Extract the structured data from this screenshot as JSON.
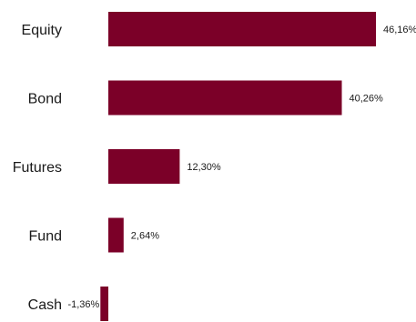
{
  "chart_data": {
    "type": "bar",
    "orientation": "horizontal",
    "categories": [
      "Equity",
      "Bond",
      "Futures",
      "Fund",
      "Cash"
    ],
    "values": [
      46.16,
      40.26,
      12.3,
      2.64,
      -1.36
    ],
    "value_labels": [
      "46,16%",
      "40,26%",
      "12,30%",
      "2,64%",
      "-1,36%"
    ],
    "unit": "%",
    "bar_color": "#7b0028",
    "title": "",
    "xlabel": "",
    "ylabel": "",
    "grid": false,
    "legend": "none"
  }
}
